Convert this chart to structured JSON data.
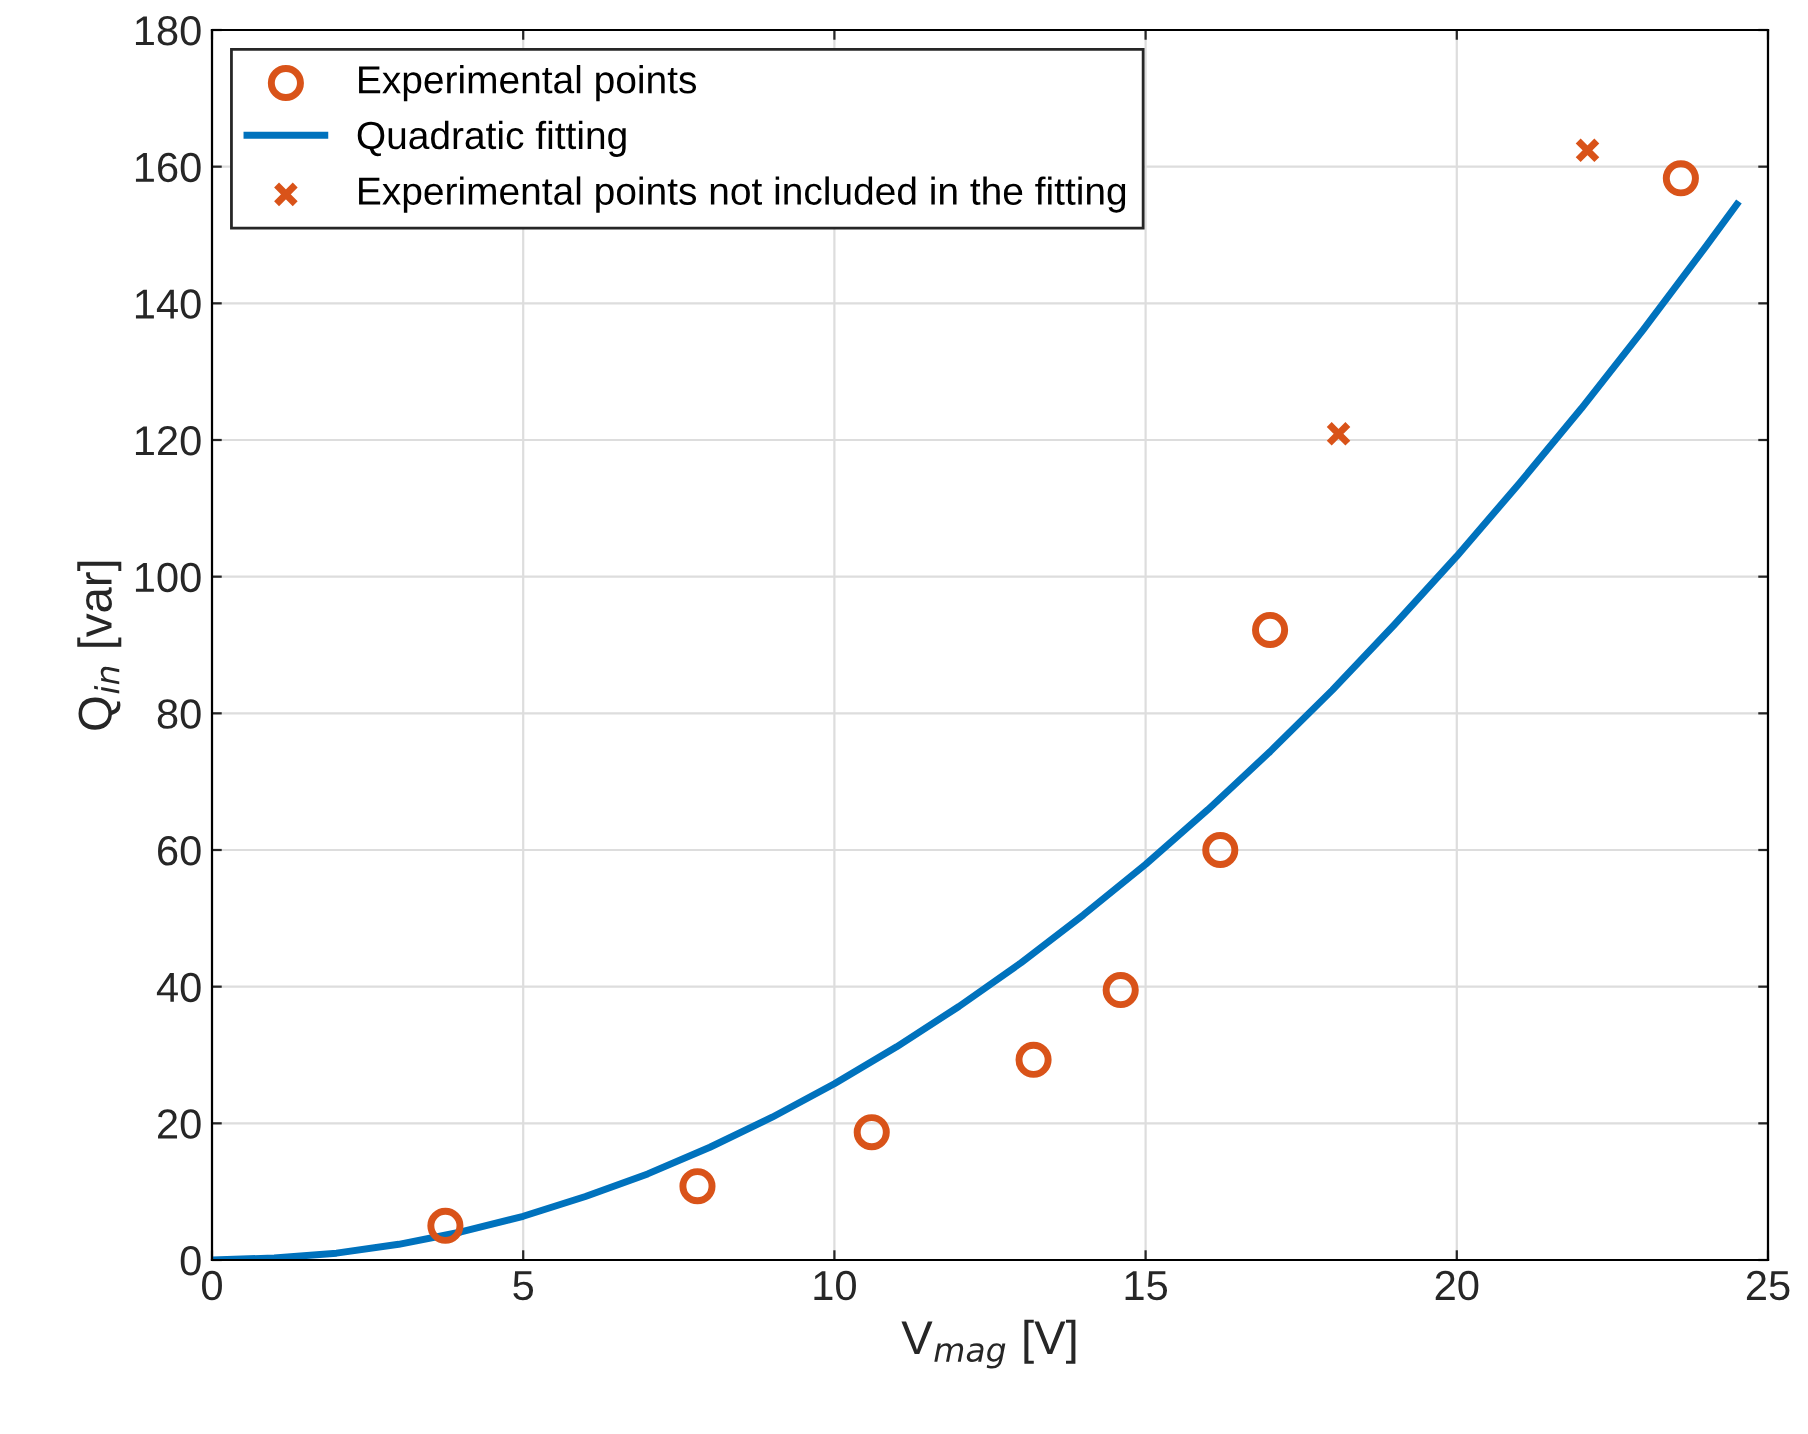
{
  "chart_data": {
    "type": "scatter",
    "xlabel": "V$_{mag}$ [V]",
    "ylabel": "Q$_{in}$ [var]",
    "xlim": [
      0,
      25
    ],
    "ylim": [
      0,
      180
    ],
    "xticks": [
      0,
      5,
      10,
      15,
      20,
      25
    ],
    "yticks": [
      0,
      20,
      40,
      60,
      80,
      100,
      120,
      140,
      160,
      180
    ],
    "grid": true,
    "legend": "top left",
    "series": [
      {
        "name": "Experimental points",
        "marker": "circle",
        "color": "#d95319",
        "x": [
          3.75,
          7.8,
          10.6,
          13.2,
          14.6,
          16.2,
          17.0,
          23.6
        ],
        "values": [
          5.0,
          10.8,
          18.7,
          29.3,
          39.5,
          60,
          92.2,
          158.3
        ]
      },
      {
        "name": "Quadratic fitting",
        "type": "line",
        "marker": "none",
        "color": "#0072bd",
        "x": [
          0,
          1,
          2,
          3,
          4,
          5,
          6,
          7,
          8,
          9,
          10,
          11,
          12,
          13,
          14,
          15,
          16,
          17,
          18,
          19,
          20,
          21,
          22,
          23,
          24,
          24.5
        ],
        "values": [
          0,
          0.3,
          1.0,
          2.3,
          4.1,
          6.4,
          9.3,
          12.6,
          16.5,
          20.9,
          25.8,
          31.2,
          37.1,
          43.5,
          50.5,
          57.9,
          65.9,
          74.4,
          83.4,
          93,
          103,
          113.6,
          124.6,
          136.2,
          148.3,
          154.5
        ]
      },
      {
        "name": "Experimental points not included in the fitting",
        "marker": "cross",
        "color": "#d95319",
        "x": [
          18.1,
          22.1
        ],
        "values": [
          120.9,
          162.4
        ]
      }
    ]
  }
}
